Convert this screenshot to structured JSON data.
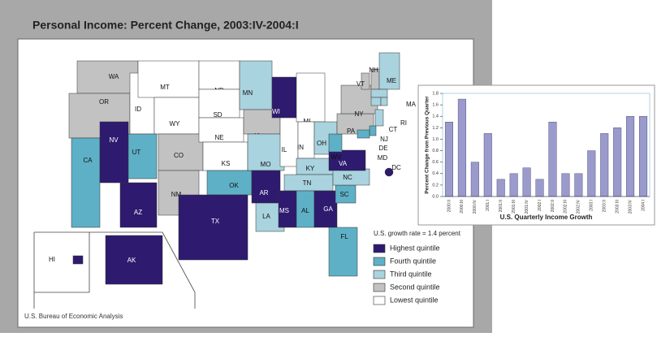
{
  "title": "Personal Income: Percent Change, 2003:IV-2004:I",
  "source": "U.S. Bureau of Economic Analysis",
  "legend": {
    "note": "U.S. growth rate = 1.4 percent",
    "items": [
      {
        "label": "Highest quintile",
        "color": "#2e1a6e"
      },
      {
        "label": "Fourth quintile",
        "color": "#5eb0c6"
      },
      {
        "label": "Third quintile",
        "color": "#a9d3de"
      },
      {
        "label": "Second quintile",
        "color": "#c2c2c2"
      },
      {
        "label": "Lowest quintile",
        "color": "#ffffff"
      }
    ]
  },
  "states": [
    {
      "label": "WA",
      "quintile": 3
    },
    {
      "label": "OR",
      "quintile": 3
    },
    {
      "label": "CA",
      "quintile": 1
    },
    {
      "label": "NV",
      "quintile": 0
    },
    {
      "label": "ID",
      "quintile": 4
    },
    {
      "label": "MT",
      "quintile": 4
    },
    {
      "label": "WY",
      "quintile": 4
    },
    {
      "label": "UT",
      "quintile": 1
    },
    {
      "label": "CO",
      "quintile": 3
    },
    {
      "label": "AZ",
      "quintile": 0
    },
    {
      "label": "NM",
      "quintile": 3
    },
    {
      "label": "ND",
      "quintile": 4
    },
    {
      "label": "SD",
      "quintile": 4
    },
    {
      "label": "NE",
      "quintile": 4
    },
    {
      "label": "KS",
      "quintile": 4
    },
    {
      "label": "OK",
      "quintile": 1
    },
    {
      "label": "TX",
      "quintile": 0
    },
    {
      "label": "MN",
      "quintile": 2
    },
    {
      "label": "IA",
      "quintile": 3
    },
    {
      "label": "MO",
      "quintile": 2
    },
    {
      "label": "AR",
      "quintile": 0
    },
    {
      "label": "LA",
      "quintile": 2
    },
    {
      "label": "WI",
      "quintile": 0
    },
    {
      "label": "IL",
      "quintile": 4
    },
    {
      "label": "MI",
      "quintile": 4
    },
    {
      "label": "IN",
      "quintile": 4
    },
    {
      "label": "OH",
      "quintile": 2
    },
    {
      "label": "KY",
      "quintile": 2
    },
    {
      "label": "TN",
      "quintile": 2
    },
    {
      "label": "MS",
      "quintile": 0
    },
    {
      "label": "AL",
      "quintile": 1
    },
    {
      "label": "GA",
      "quintile": 0
    },
    {
      "label": "FL",
      "quintile": 1
    },
    {
      "label": "SC",
      "quintile": 1
    },
    {
      "label": "NC",
      "quintile": 2
    },
    {
      "label": "VA",
      "quintile": 0
    },
    {
      "label": "WV",
      "quintile": 1
    },
    {
      "label": "PA",
      "quintile": 3
    },
    {
      "label": "NY",
      "quintile": 3
    },
    {
      "label": "VT",
      "quintile": 3
    },
    {
      "label": "NH",
      "quintile": 3
    },
    {
      "label": "ME",
      "quintile": 2
    },
    {
      "label": "MA",
      "quintile": 2
    },
    {
      "label": "CT",
      "quintile": 2
    },
    {
      "label": "RI",
      "quintile": 2
    },
    {
      "label": "NJ",
      "quintile": 2
    },
    {
      "label": "DE",
      "quintile": 1
    },
    {
      "label": "MD",
      "quintile": 1
    },
    {
      "label": "DC",
      "quintile": 0
    },
    {
      "label": "AK",
      "quintile": 0
    },
    {
      "label": "HI",
      "quintile": 0
    }
  ],
  "chart_data": {
    "type": "bar",
    "title": "U.S. Quarterly Income Growth",
    "y_label": "Percent Change from Previous Quarter",
    "categories": [
      "2000:II",
      "2000:III",
      "2000:IV",
      "2001:I",
      "2001:II",
      "2001:III",
      "2001:IV",
      "2002:I",
      "2002:II",
      "2002:III",
      "2002:IV",
      "2003:I",
      "2003:II",
      "2003:III",
      "2003:IV",
      "2004:I"
    ],
    "values": [
      1.3,
      1.7,
      0.6,
      1.1,
      0.3,
      0.4,
      0.5,
      0.3,
      1.3,
      0.4,
      0.4,
      0.8,
      1.1,
      1.2,
      1.4,
      1.4
    ],
    "color": "#9a9acc",
    "ylim": [
      0,
      1.8
    ],
    "yticks": [
      {
        "value": 0,
        "label": "0.0"
      },
      {
        "value": 0.2,
        "label": "0.2"
      },
      {
        "value": 0.4,
        "label": "0.4"
      },
      {
        "value": 0.6,
        "label": "0.6"
      },
      {
        "value": 0.8,
        "label": "0.8"
      },
      {
        "value": 1,
        "label": "1.0"
      },
      {
        "value": 1.2,
        "label": "1.2"
      },
      {
        "value": 1.4,
        "label": "1.4"
      },
      {
        "value": 1.6,
        "label": "1.6"
      },
      {
        "value": 1.8,
        "label": "1.8"
      }
    ]
  }
}
